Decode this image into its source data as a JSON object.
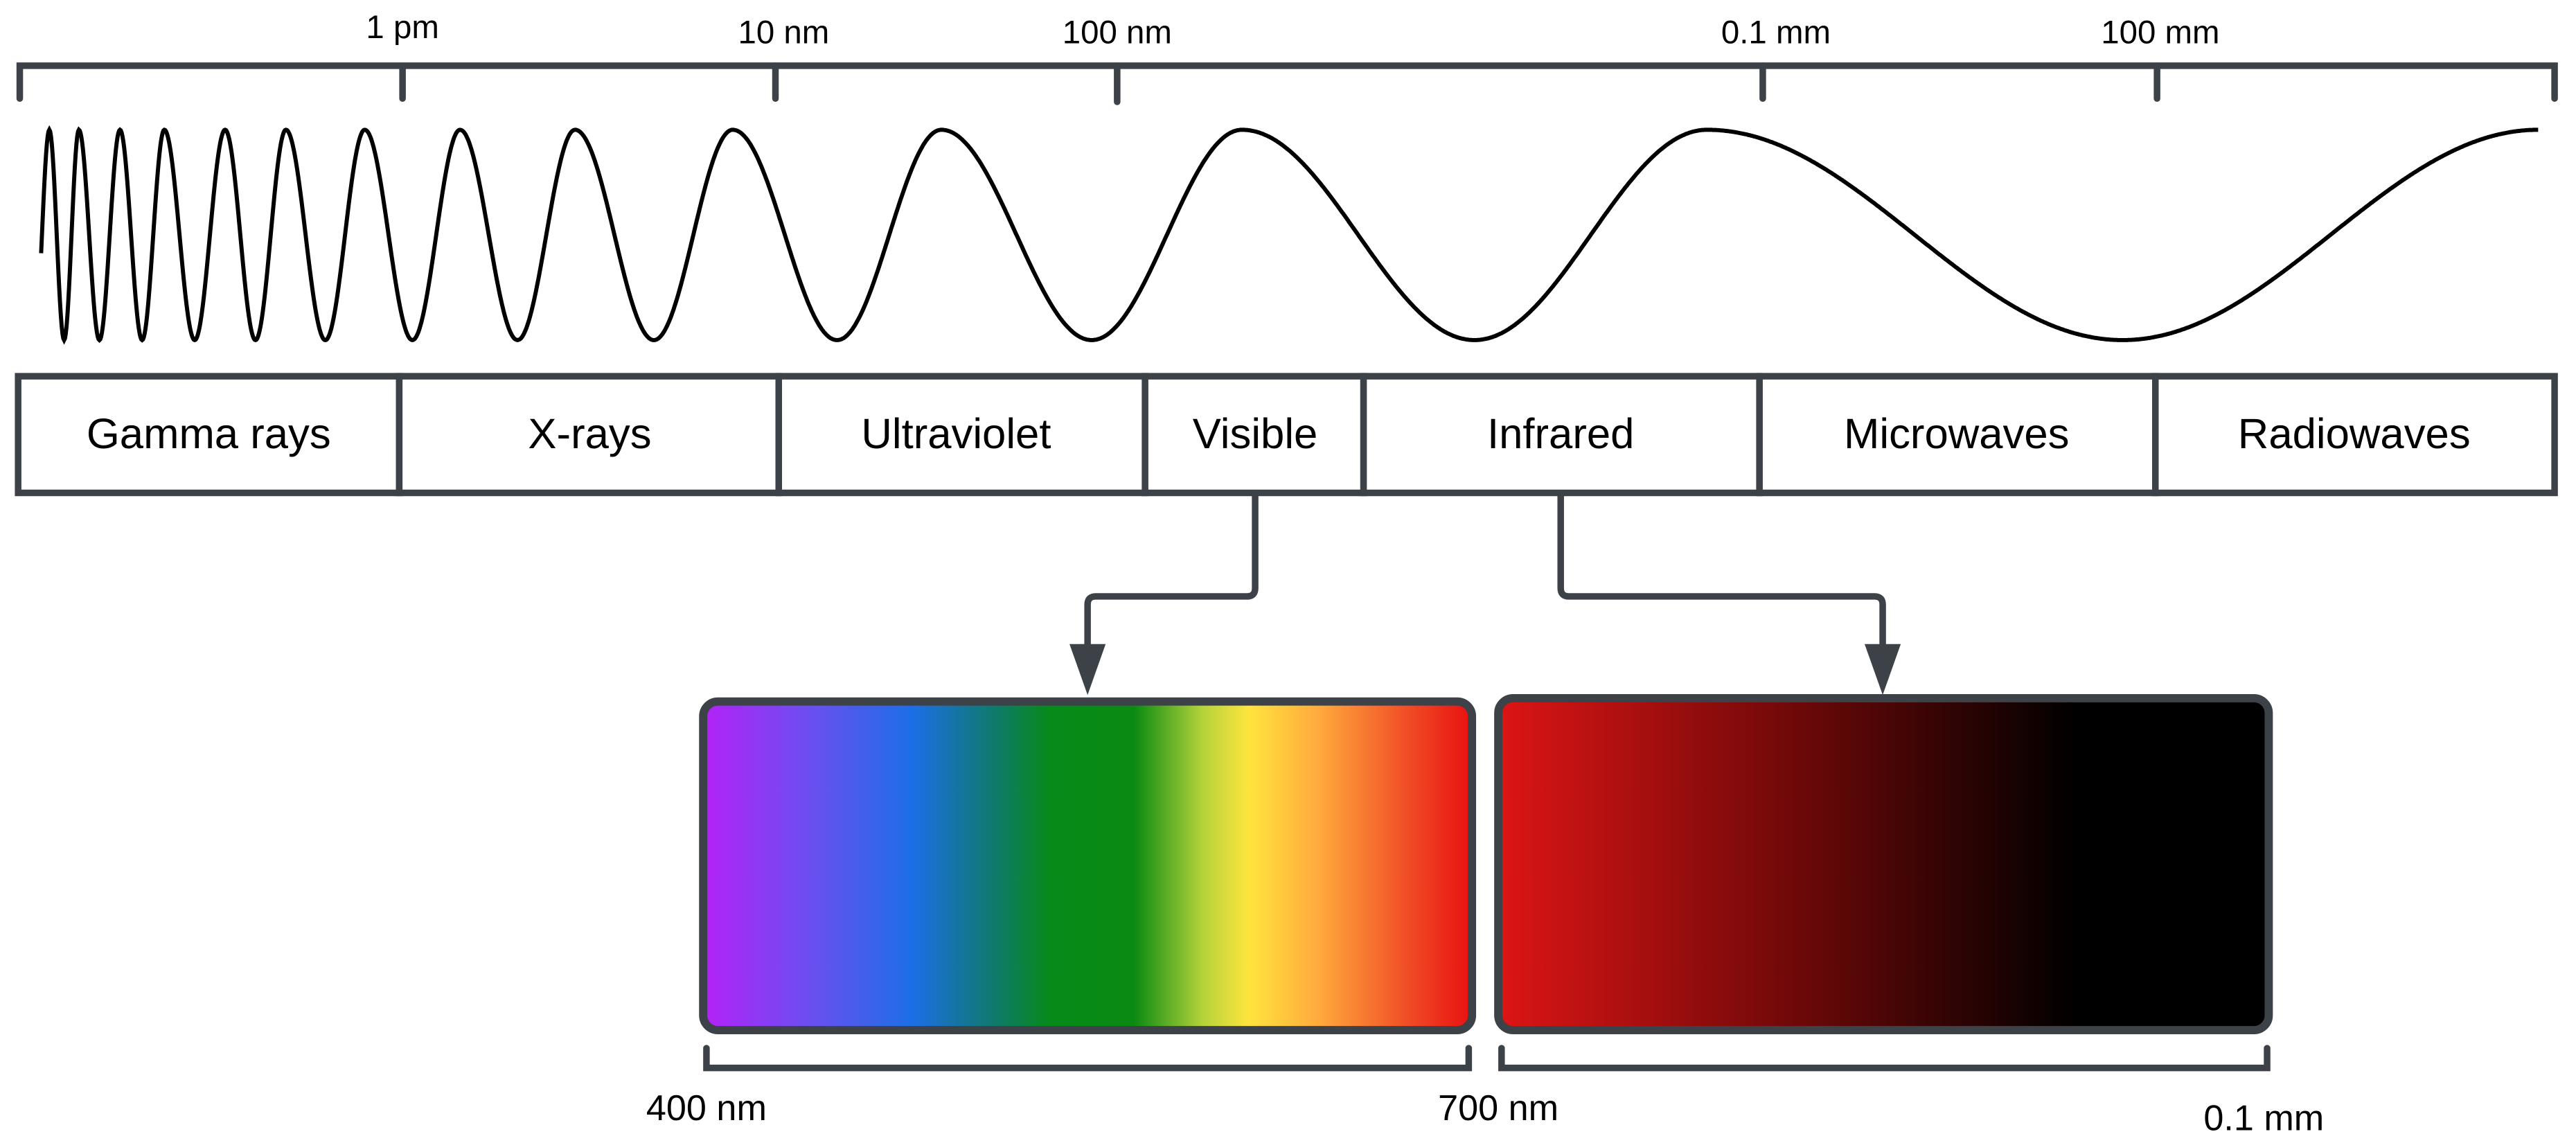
{
  "top_scale": {
    "ticks": [
      "1 pm",
      "10 nm",
      "100 nm",
      "0.1 mm",
      "100 mm"
    ]
  },
  "bands": [
    "Gamma rays",
    "X-rays",
    "Ultraviolet",
    "Visible",
    "Infrared",
    "Microwaves",
    "Radiowaves"
  ],
  "bottom_scale": {
    "ticks": [
      "400 nm",
      "700 nm",
      "0.1 mm"
    ]
  }
}
